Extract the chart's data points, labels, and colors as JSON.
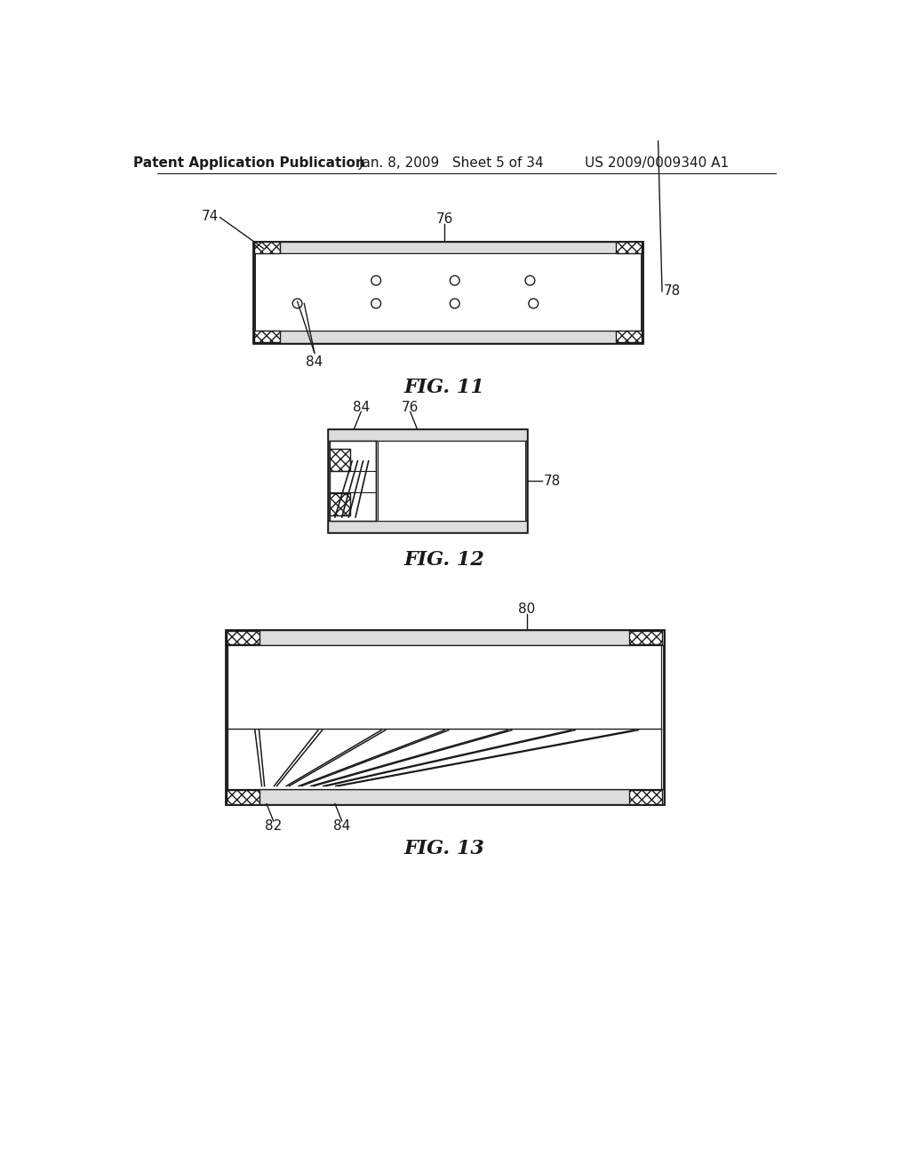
{
  "background_color": "#ffffff",
  "header_left": "Patent Application Publication",
  "header_mid": "Jan. 8, 2009   Sheet 5 of 34",
  "header_right": "US 2009/0009340 A1",
  "fig11_label": "FIG. 11",
  "fig12_label": "FIG. 12",
  "fig13_label": "FIG. 13",
  "line_color": "#1a1a1a"
}
